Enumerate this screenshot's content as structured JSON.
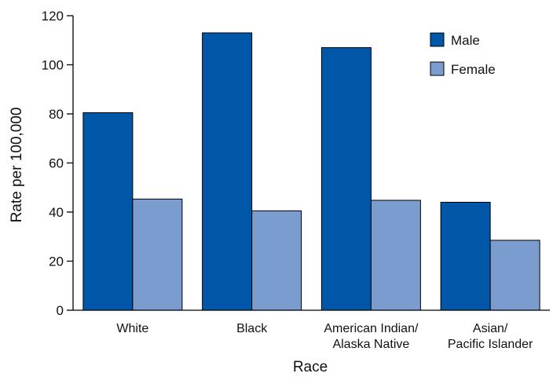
{
  "chart_data": {
    "type": "bar",
    "xlabel": "Race",
    "ylabel": "Rate per 100,000",
    "ylim": [
      0,
      120
    ],
    "yticks": [
      0,
      20,
      40,
      60,
      80,
      100,
      120
    ],
    "grid": false,
    "legend_position": "top-right",
    "categories": [
      [
        "White"
      ],
      [
        "Black"
      ],
      [
        "American Indian/",
        "Alaska Native"
      ],
      [
        "Asian/",
        "Pacific Islander"
      ]
    ],
    "series": [
      {
        "name": "Male",
        "color": "#0057A8",
        "values": [
          80.5,
          113,
          107,
          44
        ]
      },
      {
        "name": "Female",
        "color": "#7B9CCF",
        "values": [
          45.3,
          40.5,
          44.8,
          28.5
        ]
      }
    ]
  }
}
